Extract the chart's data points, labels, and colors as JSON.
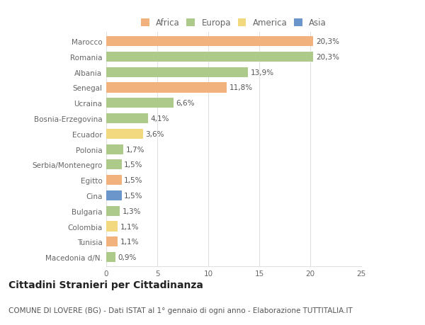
{
  "countries": [
    "Marocco",
    "Romania",
    "Albania",
    "Senegal",
    "Ucraina",
    "Bosnia-Erzegovina",
    "Ecuador",
    "Polonia",
    "Serbia/Montenegro",
    "Egitto",
    "Cina",
    "Bulgaria",
    "Colombia",
    "Tunisia",
    "Macedonia d/N."
  ],
  "values": [
    20.3,
    20.3,
    13.9,
    11.8,
    6.6,
    4.1,
    3.6,
    1.7,
    1.5,
    1.5,
    1.5,
    1.3,
    1.1,
    1.1,
    0.9
  ],
  "labels": [
    "20,3%",
    "20,3%",
    "13,9%",
    "11,8%",
    "6,6%",
    "4,1%",
    "3,6%",
    "1,7%",
    "1,5%",
    "1,5%",
    "1,5%",
    "1,3%",
    "1,1%",
    "1,1%",
    "0,9%"
  ],
  "continents": [
    "Africa",
    "Europa",
    "Europa",
    "Africa",
    "Europa",
    "Europa",
    "America",
    "Europa",
    "Europa",
    "Africa",
    "Asia",
    "Europa",
    "America",
    "Africa",
    "Europa"
  ],
  "continent_colors": {
    "Africa": "#F2B27E",
    "Europa": "#AECA8A",
    "America": "#F2D87E",
    "Asia": "#6B96CC"
  },
  "legend_order": [
    "Africa",
    "Europa",
    "America",
    "Asia"
  ],
  "title": "Cittadini Stranieri per Cittadinanza",
  "subtitle": "COMUNE DI LOVERE (BG) - Dati ISTAT al 1° gennaio di ogni anno - Elaborazione TUTTITALIA.IT",
  "xlim": [
    0,
    25
  ],
  "xticks": [
    0,
    5,
    10,
    15,
    20,
    25
  ],
  "background_color": "#ffffff",
  "grid_color": "#e0e0e0",
  "bar_height": 0.65,
  "title_fontsize": 10,
  "subtitle_fontsize": 7.5,
  "label_fontsize": 7.5,
  "tick_fontsize": 7.5,
  "legend_fontsize": 8.5
}
